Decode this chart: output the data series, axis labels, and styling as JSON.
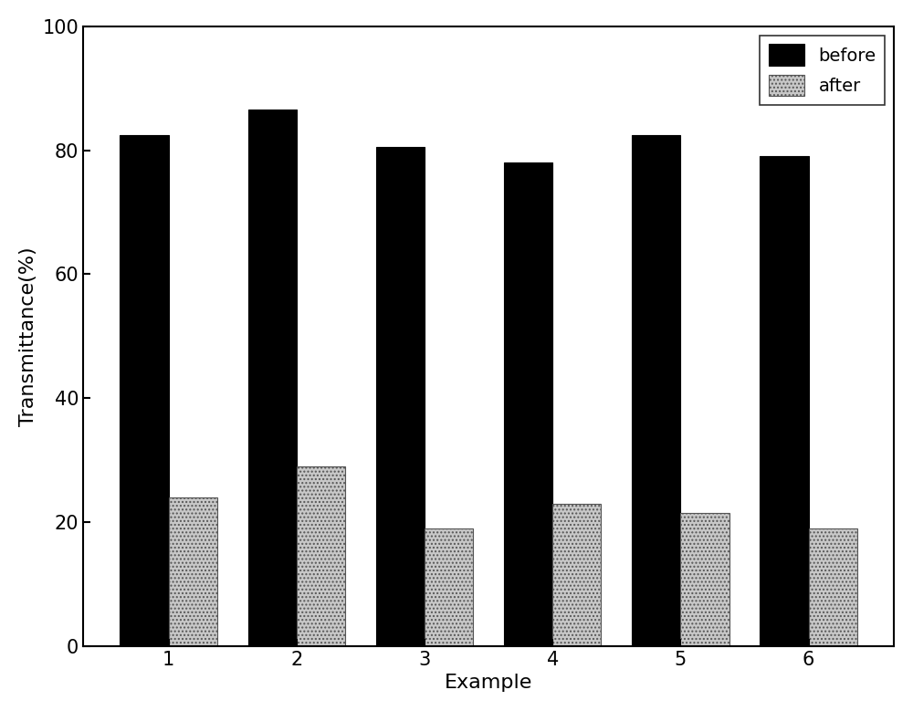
{
  "categories": [
    "1",
    "2",
    "3",
    "4",
    "5",
    "6"
  ],
  "before_values": [
    82.5,
    86.5,
    80.5,
    78.0,
    82.5,
    79.0
  ],
  "after_values": [
    24.0,
    29.0,
    19.0,
    23.0,
    21.5,
    19.0
  ],
  "before_color": "#000000",
  "after_color": "#c8c8c8",
  "title": "",
  "xlabel": "Example",
  "ylabel": "Transmittance(%)",
  "ylim": [
    0,
    100
  ],
  "yticks": [
    0,
    20,
    40,
    60,
    80,
    100
  ],
  "legend_labels": [
    "before",
    "after"
  ],
  "bar_width": 0.38,
  "figsize": [
    10.0,
    7.79
  ],
  "dpi": 100,
  "background_color": "#ffffff",
  "axis_background": "#ffffff",
  "label_fontsize": 16,
  "tick_fontsize": 15,
  "legend_fontsize": 14
}
